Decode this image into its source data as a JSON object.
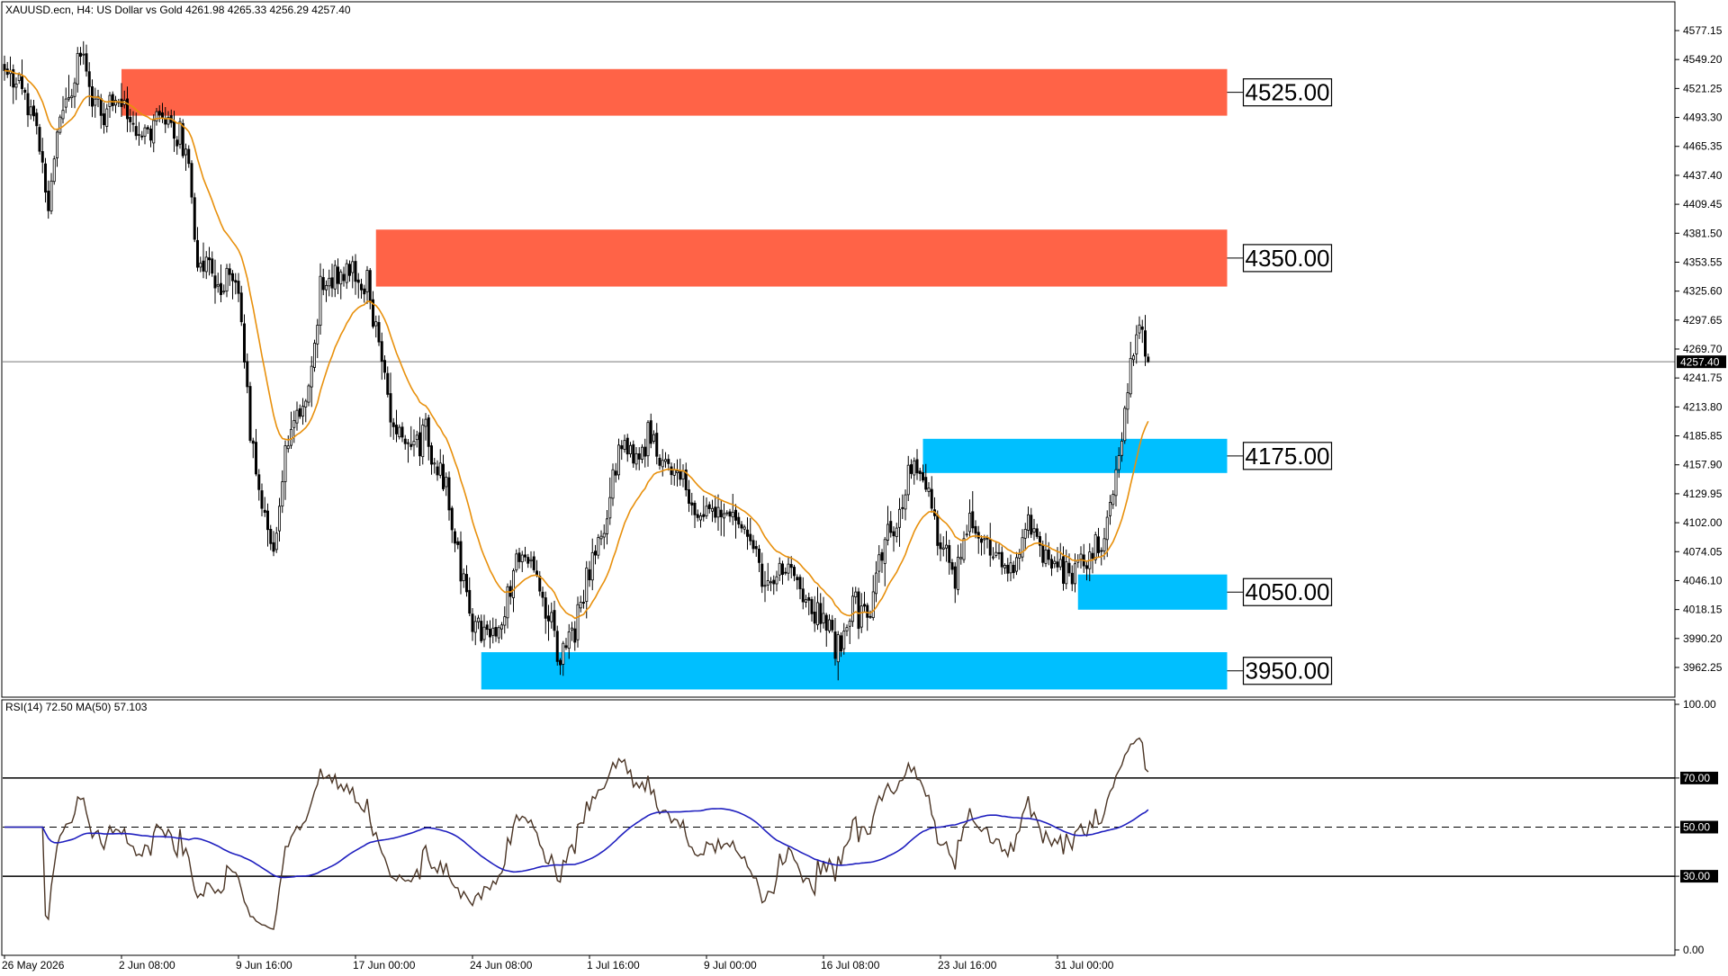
{
  "header": {
    "title": "XAUUSD.ecn, H4:  US Dollar vs Gold  4261.98 4265.33 4256.29 4257.40"
  },
  "rsi_header": "RSI(14) 72.50 MA(50) 57.103",
  "colors": {
    "background": "#ffffff",
    "candle": "#000000",
    "ma_price": "#e8900c",
    "rsi_line": "#4a3424",
    "rsi_ma": "#1f1fbf",
    "supply_zone": "#ff6347",
    "demand_zone": "#00bfff",
    "current_price_tag": "#000000"
  },
  "chart_data": [
    {
      "type": "candlestick",
      "symbol": "XAUUSD.ecn",
      "timeframe": "H4",
      "description": "US Dollar vs Gold",
      "ohlc_last": {
        "open": 4261.98,
        "high": 4265.33,
        "low": 4256.29,
        "close": 4257.4
      },
      "current_price": 4257.4,
      "current_price_label": "4257.40",
      "ylim": [
        3940,
        4590
      ],
      "y_ticks": [
        4577.15,
        4549.2,
        4521.25,
        4493.3,
        4465.35,
        4437.4,
        4409.45,
        4381.5,
        4353.55,
        4325.6,
        4297.65,
        4269.7,
        4241.75,
        4213.8,
        4185.85,
        4157.9,
        4129.95,
        4102.0,
        4074.05,
        4046.1,
        4018.15,
        3990.2,
        3962.25
      ],
      "y_tick_labels": [
        "4577.15",
        "4549.20",
        "4521.25",
        "4493.30",
        "4465.35",
        "4437.40",
        "4409.45",
        "4381.50",
        "4353.55",
        "4325.60",
        "4297.65",
        "4269.70",
        "4241.75",
        "4213.80",
        "4185.85",
        "4157.90",
        "4129.95",
        "4102.00",
        "4074.05",
        "4046.10",
        "4018.15",
        "3990.20",
        "3962.25"
      ],
      "x_tick_labels": [
        "26 May 2026",
        "2 Jun 08:00",
        "9 Jun 16:00",
        "17 Jun 00:00",
        "24 Jun 08:00",
        "1 Jul 16:00",
        "9 Jul 00:00",
        "16 Jul 08:00",
        "23 Jul 16:00",
        "31 Jul 00:00"
      ],
      "x_tick_bars": [
        0,
        40,
        80,
        120,
        160,
        200,
        240,
        280,
        320,
        360
      ],
      "bar_count": 392,
      "moving_average_color": "orange",
      "close_path_anchors": [
        [
          0,
          4545
        ],
        [
          6,
          4520
        ],
        [
          12,
          4470
        ],
        [
          15,
          4395
        ],
        [
          18,
          4480
        ],
        [
          22,
          4515
        ],
        [
          26,
          4555
        ],
        [
          30,
          4510
        ],
        [
          34,
          4500
        ],
        [
          38,
          4520
        ],
        [
          44,
          4480
        ],
        [
          50,
          4475
        ],
        [
          56,
          4495
        ],
        [
          62,
          4465
        ],
        [
          66,
          4360
        ],
        [
          72,
          4325
        ],
        [
          76,
          4340
        ],
        [
          80,
          4320
        ],
        [
          84,
          4200
        ],
        [
          88,
          4110
        ],
        [
          92,
          4080
        ],
        [
          96,
          4170
        ],
        [
          100,
          4200
        ],
        [
          104,
          4240
        ],
        [
          108,
          4320
        ],
        [
          112,
          4335
        ],
        [
          116,
          4345
        ],
        [
          120,
          4335
        ],
        [
          124,
          4325
        ],
        [
          128,
          4290
        ],
        [
          132,
          4200
        ],
        [
          138,
          4180
        ],
        [
          144,
          4190
        ],
        [
          150,
          4140
        ],
        [
          155,
          4080
        ],
        [
          160,
          4010
        ],
        [
          165,
          3990
        ],
        [
          170,
          4000
        ],
        [
          175,
          4080
        ],
        [
          180,
          4060
        ],
        [
          185,
          4020
        ],
        [
          190,
          3980
        ],
        [
          195,
          4000
        ],
        [
          200,
          4060
        ],
        [
          205,
          4100
        ],
        [
          210,
          4180
        ],
        [
          215,
          4170
        ],
        [
          220,
          4185
        ],
        [
          225,
          4150
        ],
        [
          230,
          4150
        ],
        [
          235,
          4120
        ],
        [
          240,
          4110
        ],
        [
          245,
          4115
        ],
        [
          250,
          4110
        ],
        [
          255,
          4095
        ],
        [
          260,
          4040
        ],
        [
          265,
          4060
        ],
        [
          270,
          4050
        ],
        [
          275,
          4025
        ],
        [
          280,
          4010
        ],
        [
          285,
          3980
        ],
        [
          290,
          4020
        ],
        [
          295,
          4010
        ],
        [
          300,
          4080
        ],
        [
          305,
          4110
        ],
        [
          310,
          4150
        ],
        [
          315,
          4140
        ],
        [
          320,
          4080
        ],
        [
          325,
          4050
        ],
        [
          330,
          4100
        ],
        [
          335,
          4090
        ],
        [
          340,
          4060
        ],
        [
          345,
          4050
        ],
        [
          350,
          4110
        ],
        [
          355,
          4070
        ],
        [
          360,
          4060
        ],
        [
          365,
          4050
        ],
        [
          370,
          4070
        ],
        [
          375,
          4080
        ],
        [
          380,
          4145
        ],
        [
          384,
          4230
        ],
        [
          388,
          4290
        ],
        [
          391,
          4257.4
        ]
      ],
      "zones": [
        {
          "type": "supply",
          "label": "4525.00",
          "low": 4495,
          "high": 4540,
          "bar_start": 40,
          "bar_end": 418
        },
        {
          "type": "supply",
          "label": "4350.00",
          "low": 4330,
          "high": 4385,
          "bar_start": 127,
          "bar_end": 418
        },
        {
          "type": "demand",
          "label": "4175.00",
          "low": 4150,
          "high": 4183,
          "bar_start": 314,
          "bar_end": 418
        },
        {
          "type": "demand",
          "label": "4050.00",
          "low": 4018,
          "high": 4052,
          "bar_start": 367,
          "bar_end": 418
        },
        {
          "type": "demand",
          "label": "3950.00",
          "low": 3941,
          "high": 3977,
          "bar_start": 163,
          "bar_end": 418
        }
      ]
    },
    {
      "type": "line",
      "indicator": "RSI(14)",
      "rsi_value": 72.5,
      "ma_period": 50,
      "ma_value": 57.103,
      "ylim": [
        0,
        100
      ],
      "y_ticks": [
        100,
        70,
        50,
        30,
        0
      ],
      "y_tick_labels": [
        "100.00",
        "70.00",
        "50.00",
        "30.00",
        "0.00"
      ],
      "levels": [
        70,
        50,
        30
      ]
    }
  ]
}
